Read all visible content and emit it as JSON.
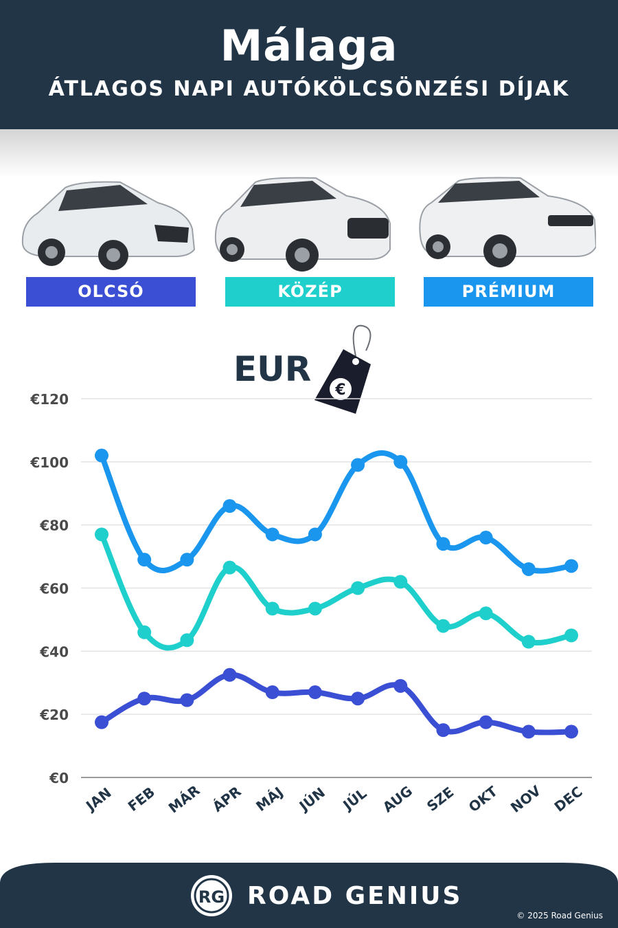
{
  "header": {
    "title": "Málaga",
    "subtitle": "ÁTLAGOS NAPI AUTÓKÖLCSÖNZÉSI DÍJAK"
  },
  "categories": [
    {
      "label": "OLCSÓ",
      "color": "#3b4fd4"
    },
    {
      "label": "KÖZÉP",
      "color": "#1fcfcb"
    },
    {
      "label": "PRÉMIUM",
      "color": "#1a96ee"
    }
  ],
  "currency_label": "EUR",
  "tag_symbol": "€",
  "chart_data": {
    "type": "line",
    "title": "",
    "xlabel": "",
    "ylabel": "",
    "categories": [
      "JAN",
      "FEB",
      "MÁR",
      "ÁPR",
      "MÁJ",
      "JÚN",
      "JÚL",
      "AUG",
      "SZE",
      "OKT",
      "NOV",
      "DEC"
    ],
    "y_ticks": [
      "€0",
      "€20",
      "€40",
      "€60",
      "€80",
      "€100",
      "€120"
    ],
    "ylim": [
      0,
      120
    ],
    "grid": true,
    "series": [
      {
        "color": "#1a96ee",
        "values": [
          102,
          69,
          69,
          86,
          77,
          77,
          99,
          100,
          74,
          76,
          66,
          67
        ]
      },
      {
        "color": "#1fcfcb",
        "values": [
          77,
          46,
          43.5,
          66.5,
          53.5,
          53.5,
          60,
          62,
          48,
          52,
          43,
          45
        ]
      },
      {
        "color": "#3b4fd4",
        "values": [
          17.5,
          25,
          24.5,
          32.5,
          27,
          27,
          25,
          29,
          15,
          17.5,
          14.5,
          14.5
        ]
      }
    ]
  },
  "footer": {
    "logo_initials": "RG",
    "brand": "ROAD GENIUS",
    "copyright": "© 2025 Road Genius"
  }
}
